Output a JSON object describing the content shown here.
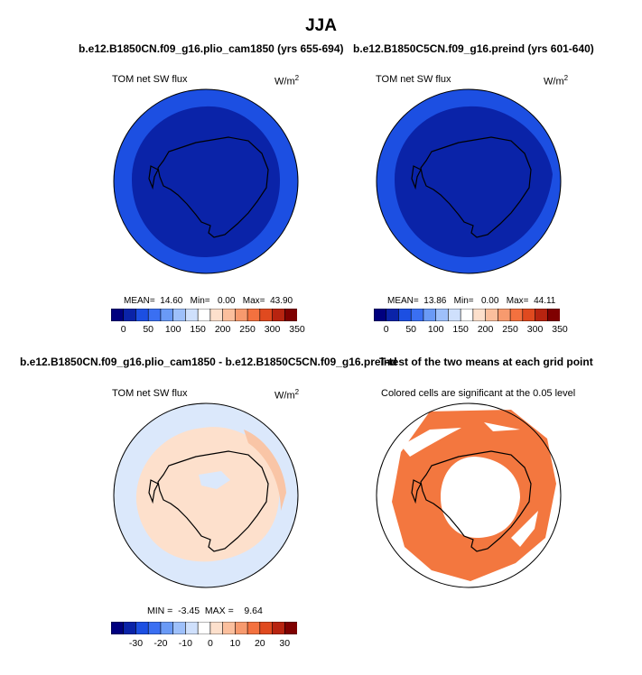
{
  "figure": {
    "title": "JJA"
  },
  "chart_data": [
    {
      "type": "map",
      "title": "b.e12.B1850CN.f09_g16.plio_cam1850 (yrs 655-694)",
      "left_label": "TOM net SW flux",
      "units_prefix": "W/m",
      "units_sup": "2",
      "fill_color": "#1c4fe2",
      "inner_fill_color": "#0a23a8",
      "stats": {
        "mean_label": "MEAN=",
        "mean": "14.60",
        "min_label": "Min=",
        "min": "0.00",
        "max_label": "Max=",
        "max": "43.90"
      },
      "colorbar": {
        "colors": [
          "#00007f",
          "#0a23a8",
          "#1c4fe2",
          "#3a6ff2",
          "#6a9af6",
          "#9ec0fa",
          "#cfe0fc",
          "#ffffff",
          "#fde0cc",
          "#fbbf9d",
          "#f79a6e",
          "#f3713f",
          "#e04a1f",
          "#b82410",
          "#7f0000"
        ],
        "ticks": [
          "0",
          "50",
          "100",
          "150",
          "200",
          "250",
          "300",
          "350"
        ]
      }
    },
    {
      "type": "map",
      "title": "b.e12.B1850C5CN.f09_g16.preind (yrs 601-640)",
      "left_label": "TOM net SW flux",
      "units_prefix": "W/m",
      "units_sup": "2",
      "fill_color": "#1c4fe2",
      "inner_fill_color": "#0a23a8",
      "stats": {
        "mean_label": "MEAN=",
        "mean": "13.86",
        "min_label": "Min=",
        "min": "0.00",
        "max_label": "Max=",
        "max": "44.11"
      },
      "colorbar": {
        "colors": [
          "#00007f",
          "#0a23a8",
          "#1c4fe2",
          "#3a6ff2",
          "#6a9af6",
          "#9ec0fa",
          "#cfe0fc",
          "#ffffff",
          "#fde0cc",
          "#fbbf9d",
          "#f79a6e",
          "#f3713f",
          "#e04a1f",
          "#b82410",
          "#7f0000"
        ],
        "ticks": [
          "0",
          "50",
          "100",
          "150",
          "200",
          "250",
          "300",
          "350"
        ]
      }
    },
    {
      "type": "map",
      "title": "b.e12.B1850CN.f09_g16.plio_cam1850 - b.e12.B1850C5CN.f09_g16.preind",
      "left_label": "TOM net SW flux",
      "units_prefix": "W/m",
      "units_sup": "2",
      "fill_color": "#fde0cc",
      "stats": {
        "min_label": "MIN =",
        "min": "-3.45",
        "max_label": "MAX =",
        "max": "9.64"
      },
      "colorbar": {
        "colors": [
          "#00007f",
          "#0a23a8",
          "#1c4fe2",
          "#3a6ff2",
          "#6a9af6",
          "#9ec0fa",
          "#cfe0fc",
          "#ffffff",
          "#fde0cc",
          "#fbbf9d",
          "#f79a6e",
          "#f3713f",
          "#e04a1f",
          "#b82410",
          "#7f0000"
        ],
        "ticks": [
          "-30",
          "-20",
          "-10",
          "0",
          "10",
          "20",
          "30"
        ]
      }
    },
    {
      "type": "map",
      "title": "T-test of the two means at each grid point",
      "left_label": "Colored cells are significant at the 0.05 level",
      "fill_color": "#f3773f"
    }
  ]
}
